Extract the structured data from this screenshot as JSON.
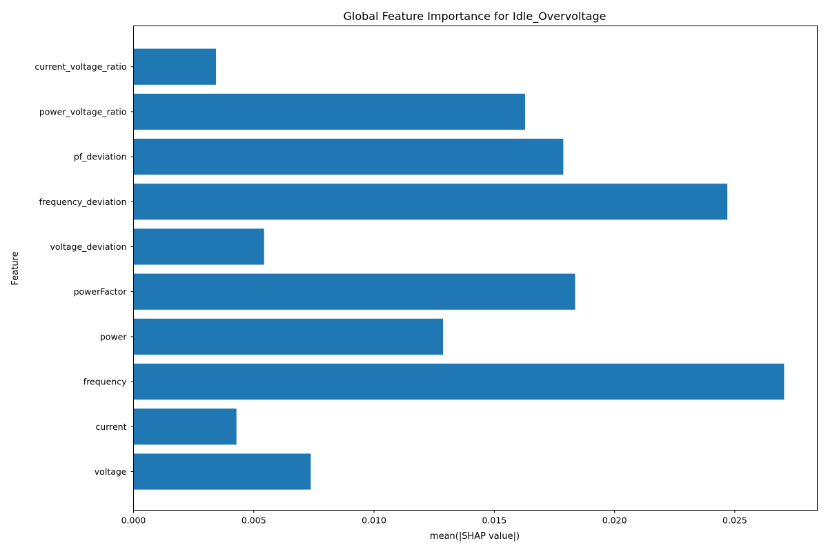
{
  "chart_data": {
    "type": "bar",
    "orientation": "horizontal",
    "title": "Global Feature Importance for Idle_Overvoltage",
    "xlabel": "mean(|SHAP value|)",
    "ylabel": "Feature",
    "categories": [
      "voltage",
      "current",
      "frequency",
      "power",
      "powerFactor",
      "voltage_deviation",
      "frequency_deviation",
      "pf_deviation",
      "power_voltage_ratio",
      "current_voltage_ratio"
    ],
    "values": [
      0.00737,
      0.00428,
      0.02705,
      0.01287,
      0.01836,
      0.00543,
      0.02469,
      0.01787,
      0.01628,
      0.00343
    ],
    "xlim": [
      0,
      0.02843
    ],
    "xticks": [
      0.0,
      0.005,
      0.01,
      0.015,
      0.02,
      0.025
    ],
    "xtick_labels": [
      "0.000",
      "0.005",
      "0.010",
      "0.015",
      "0.020",
      "0.025"
    ],
    "bar_color": "#1f77b4",
    "grid": false,
    "legend": "none"
  }
}
